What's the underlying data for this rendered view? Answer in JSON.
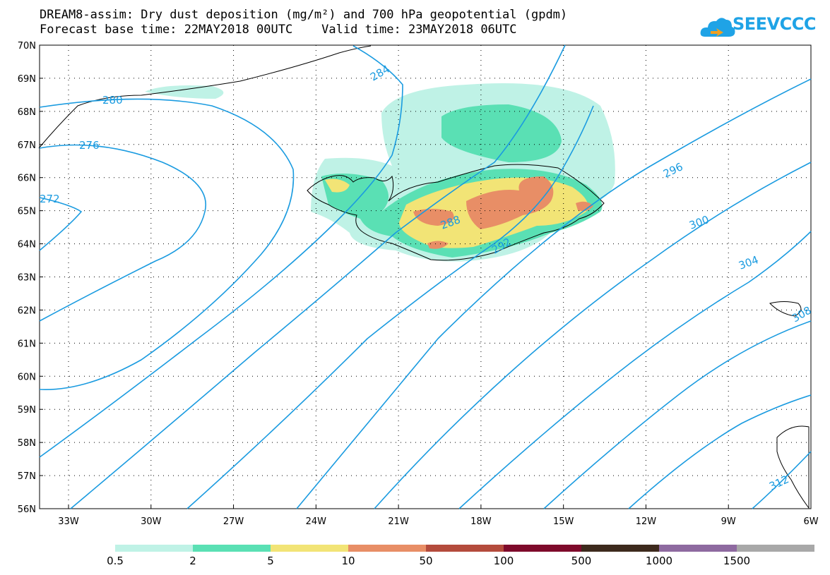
{
  "header": {
    "title_line1": "DREAM8-assim: Dry dust deposition (mg/m²) and 700 hPa geopotential (gpdm)",
    "title_line2": "Forecast base time: 22MAY2018 00UTC    Valid time: 23MAY2018 06UTC"
  },
  "logo": {
    "text": "SEEVCCC",
    "icon": "cloud-logo-icon",
    "color": "#1fa3e6"
  },
  "map": {
    "lat_labels": [
      "70N",
      "69N",
      "68N",
      "67N",
      "66N",
      "65N",
      "64N",
      "63N",
      "62N",
      "61N",
      "60N",
      "59N",
      "58N",
      "57N",
      "56N"
    ],
    "lon_labels": [
      "33W",
      "30W",
      "27W",
      "24W",
      "21W",
      "18W",
      "15W",
      "12W",
      "9W",
      "6W"
    ],
    "contour_color": "#1a9be0",
    "contour_labels": [
      "280",
      "276",
      "272",
      "284",
      "288",
      "292",
      "296",
      "300",
      "304",
      "308",
      "312"
    ]
  },
  "legend": {
    "thresholds": [
      "0.5",
      "2",
      "5",
      "10",
      "50",
      "100",
      "500",
      "1000",
      "1500"
    ],
    "colors": [
      "#bff2e6",
      "#5ae0b4",
      "#f2e476",
      "#e88e66",
      "#b44b3c",
      "#7e0a2b",
      "#3d2a1d",
      "#8e6aa0",
      "#a8a8a8"
    ]
  }
}
